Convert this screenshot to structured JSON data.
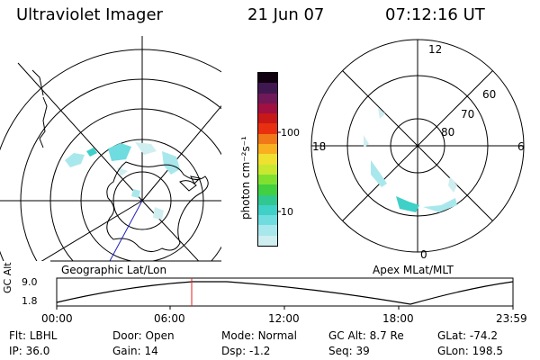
{
  "header": {
    "title": "Ultraviolet Imager",
    "date": "21 Jun 07",
    "time": "07:12:16 UT"
  },
  "left_map": {
    "label": "Geographic Lat/Lon"
  },
  "right_map": {
    "label": "Apex MLat/MLT",
    "mlt_labels": {
      "top": "12",
      "left": "18",
      "right": "6",
      "bottom": "0"
    },
    "lat_labels": [
      "60",
      "70",
      "80"
    ]
  },
  "colorbar": {
    "unit_label": "photon cm⁻²s⁻¹",
    "ticks": [
      "100",
      "10"
    ],
    "colors": [
      "#cfeef0",
      "#a8e8ec",
      "#6fdce0",
      "#3fd0c8",
      "#30c890",
      "#40d040",
      "#80e030",
      "#c8e830",
      "#f0e030",
      "#f8b020",
      "#f07818",
      "#e83010",
      "#c81818",
      "#a01040",
      "#701858",
      "#401850",
      "#100010"
    ]
  },
  "altitude_strip": {
    "axis_title": "GC Alt",
    "y_ticks": [
      "9.0",
      "1.8"
    ],
    "x_ticks": [
      "00:00",
      "06:00",
      "12:00",
      "18:00",
      "23:59"
    ],
    "marker_color": "#e02020"
  },
  "status": {
    "row1": [
      {
        "label": "Flt:",
        "value": "LBHL"
      },
      {
        "label": "Door:",
        "value": "Open"
      },
      {
        "label": "Mode:",
        "value": "Normal"
      },
      {
        "label": "GC Alt:",
        "value": "8.7 Re"
      },
      {
        "label": "GLat:",
        "value": "-74.2"
      }
    ],
    "row2": [
      {
        "label": "IP:",
        "value": "36.0"
      },
      {
        "label": "Gain:",
        "value": "14"
      },
      {
        "label": "Dsp:",
        "value": "-1.2"
      },
      {
        "label": "Seq:",
        "value": "39"
      },
      {
        "label": "GLon:",
        "value": "198.5"
      }
    ]
  }
}
